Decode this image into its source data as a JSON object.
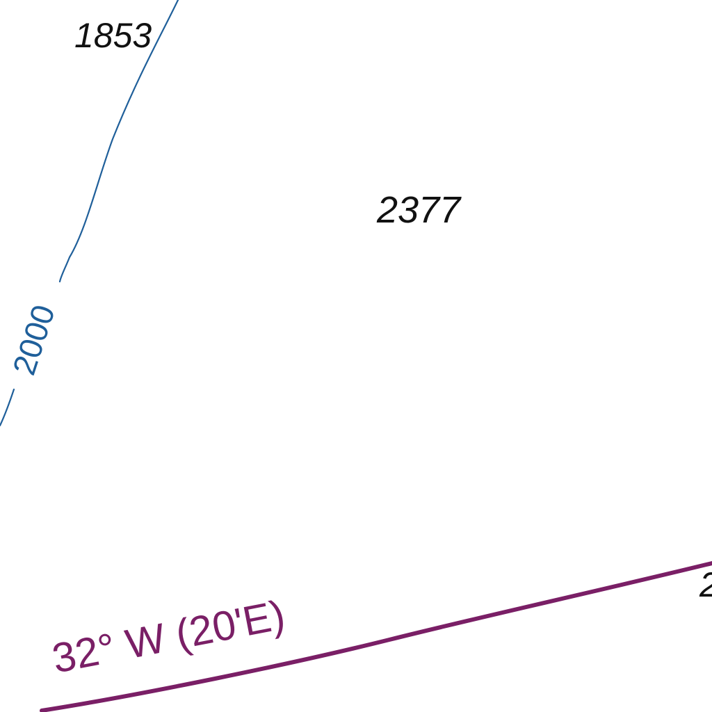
{
  "colors": {
    "background": "#ffffff",
    "depth_contour": "#1f5f9a",
    "isogonic_line": "#7a1f66",
    "sounding_text": "#111111"
  },
  "soundings": [
    {
      "id": "sounding-1853",
      "value": "1853"
    },
    {
      "id": "sounding-2377",
      "value": "2377"
    },
    {
      "id": "sounding-edge",
      "value": "2"
    }
  ],
  "depth_contour": {
    "label": "2000"
  },
  "isogonic_line": {
    "label": "32° W (20'E)"
  }
}
